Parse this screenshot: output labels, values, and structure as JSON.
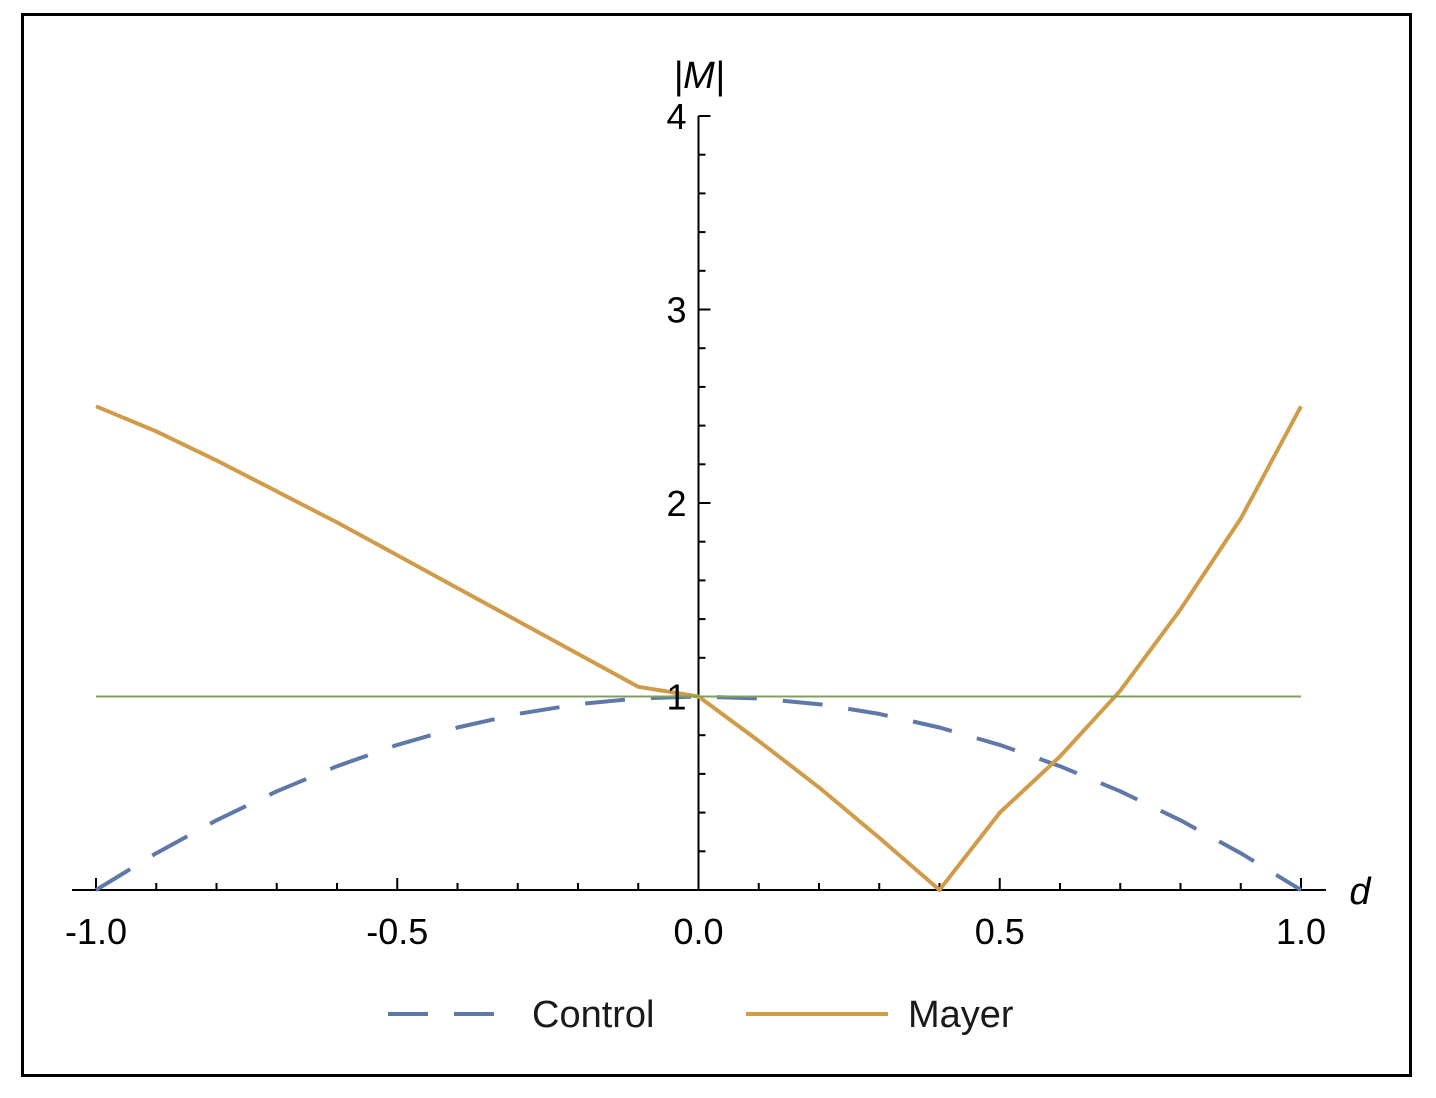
{
  "chart_data": {
    "type": "line",
    "xlabel": "d",
    "ylabel": "|M|",
    "xlim": [
      -1.0,
      1.0
    ],
    "ylim": [
      0,
      4
    ],
    "x_ticks": [
      -1.0,
      -0.5,
      0.0,
      0.5,
      1.0
    ],
    "x_tick_labels": [
      "-1.0",
      "-0.5",
      "0.0",
      "0.5",
      "1.0"
    ],
    "y_ticks": [
      1,
      2,
      3,
      4
    ],
    "y_tick_labels": [
      "1",
      "2",
      "3",
      "4"
    ],
    "grid": false,
    "legend_position": "bottom",
    "series": [
      {
        "name": "Control",
        "style": "dashed",
        "color": "#5e78a8",
        "x": [
          -1.0,
          -0.9,
          -0.8,
          -0.7,
          -0.6,
          -0.5,
          -0.4,
          -0.3,
          -0.2,
          -0.1,
          0.0,
          0.1,
          0.2,
          0.3,
          0.4,
          0.5,
          0.6,
          0.7,
          0.8,
          0.9,
          1.0
        ],
        "y": [
          0.0,
          0.19,
          0.36,
          0.51,
          0.64,
          0.75,
          0.84,
          0.91,
          0.96,
          0.99,
          1.0,
          0.99,
          0.96,
          0.91,
          0.84,
          0.75,
          0.64,
          0.51,
          0.36,
          0.19,
          0.0
        ]
      },
      {
        "name": "Mayer",
        "style": "solid",
        "color": "#d19c49",
        "x": [
          -1.0,
          -0.9,
          -0.8,
          -0.7,
          -0.6,
          -0.5,
          -0.4,
          -0.3,
          -0.2,
          -0.1,
          0.0,
          0.1,
          0.2,
          0.3,
          0.4,
          0.5,
          0.6,
          0.7,
          0.8,
          0.9,
          1.0
        ],
        "y": [
          2.5,
          2.37,
          2.22,
          2.06,
          1.9,
          1.73,
          1.56,
          1.39,
          1.22,
          1.05,
          1.0,
          0.77,
          0.53,
          0.27,
          0.0,
          0.4,
          0.69,
          1.03,
          1.45,
          1.92,
          2.5
        ]
      },
      {
        "style": "solid",
        "color": "#7ea356",
        "x": [
          -1.0,
          1.0
        ],
        "y": [
          1.0,
          1.0
        ]
      }
    ]
  }
}
